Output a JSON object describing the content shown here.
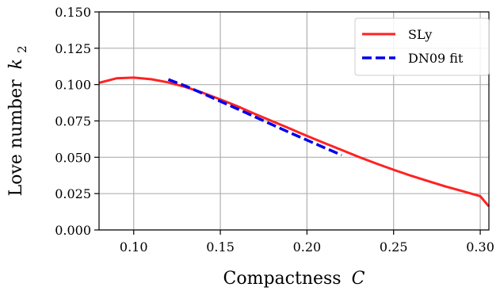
{
  "chart_data": {
    "type": "line",
    "xlabel": "Compactness",
    "xlabel_var": "C",
    "ylabel": "Love number",
    "ylabel_var": "k",
    "ylabel_sub": "2",
    "xlim": [
      0.08,
      0.305
    ],
    "ylim": [
      0.0,
      0.15
    ],
    "xticks": [
      0.1,
      0.15,
      0.2,
      0.25,
      0.3
    ],
    "xtick_labels": [
      "0.10",
      "0.15",
      "0.20",
      "0.25",
      "0.30"
    ],
    "yticks": [
      0.0,
      0.025,
      0.05,
      0.075,
      0.1,
      0.125,
      0.15
    ],
    "ytick_labels": [
      "0.000",
      "0.025",
      "0.050",
      "0.075",
      "0.100",
      "0.125",
      "0.150"
    ],
    "grid": true,
    "legend_position": "top-right",
    "series": [
      {
        "name": "SLy",
        "color": "#ff2222",
        "dash": "solid",
        "x": [
          0.08,
          0.09,
          0.1,
          0.11,
          0.12,
          0.13,
          0.14,
          0.15,
          0.16,
          0.17,
          0.18,
          0.19,
          0.2,
          0.21,
          0.22,
          0.23,
          0.24,
          0.25,
          0.26,
          0.27,
          0.28,
          0.29,
          0.3,
          0.305
        ],
        "y": [
          0.1012,
          0.1043,
          0.1048,
          0.1037,
          0.1015,
          0.0983,
          0.0943,
          0.0898,
          0.085,
          0.0798,
          0.0748,
          0.0698,
          0.0647,
          0.0598,
          0.055,
          0.0502,
          0.0457,
          0.0414,
          0.0373,
          0.0336,
          0.0299,
          0.0266,
          0.0232,
          0.0162
        ]
      },
      {
        "name": "DN09 fit",
        "color": "#0000ee",
        "dash": "dashed",
        "x": [
          0.12,
          0.13,
          0.14,
          0.15,
          0.16,
          0.17,
          0.18,
          0.19,
          0.2,
          0.21,
          0.22
        ],
        "y": [
          0.1035,
          0.099,
          0.0938,
          0.0885,
          0.0832,
          0.0778,
          0.0724,
          0.067,
          0.0618,
          0.0566,
          0.0515
        ]
      }
    ]
  }
}
